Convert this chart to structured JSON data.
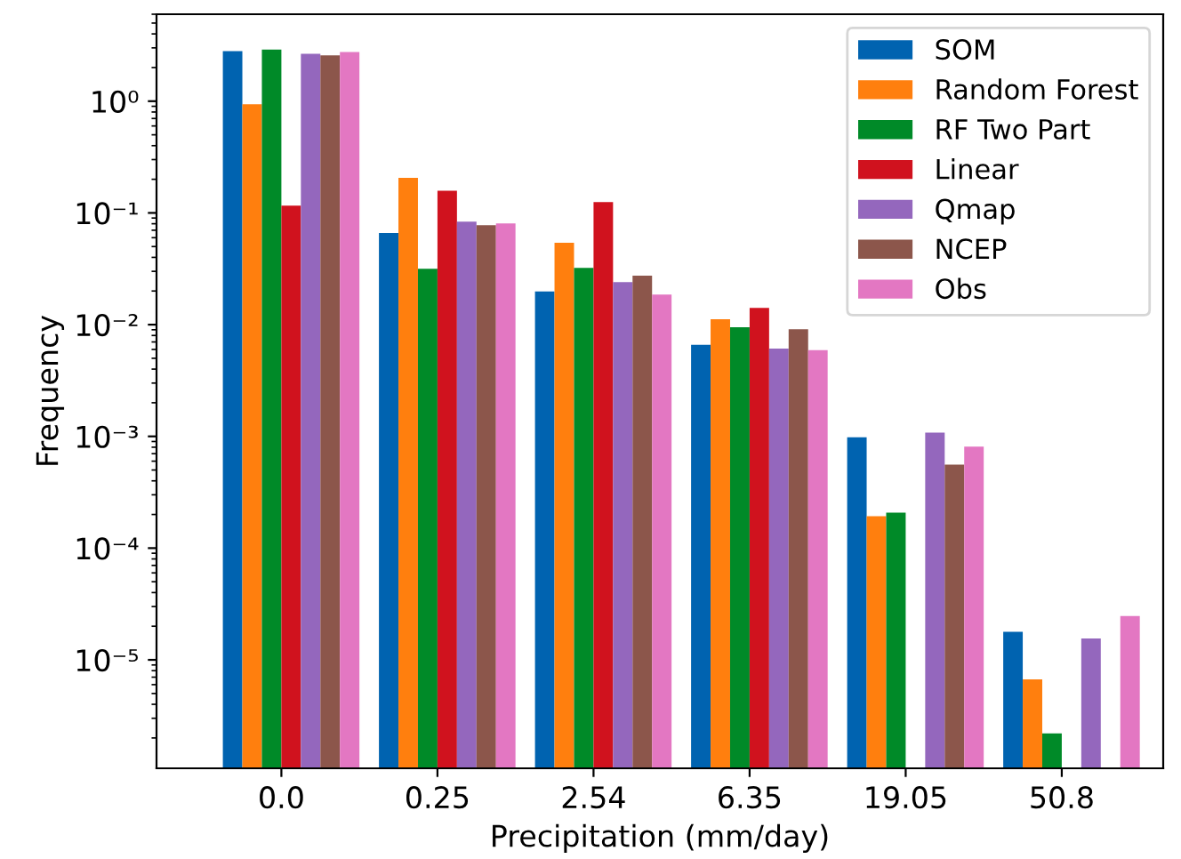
{
  "chart_data": {
    "type": "bar",
    "xlabel": "Precipitation (mm/day)",
    "ylabel": "Frequency",
    "categories": [
      "0.0",
      "0.25",
      "2.54",
      "6.35",
      "19.05",
      "50.8"
    ],
    "log": true,
    "ylim": [
      1.07e-06,
      6
    ],
    "yticks": [
      {
        "value": 1e-05,
        "label": "10⁻⁵"
      },
      {
        "value": 0.0001,
        "label": "10⁻⁴"
      },
      {
        "value": 0.001,
        "label": "10⁻³"
      },
      {
        "value": 0.01,
        "label": "10⁻²"
      },
      {
        "value": 0.1,
        "label": "10⁻¹"
      },
      {
        "value": 1,
        "label": "10⁰"
      }
    ],
    "legend": "top right",
    "grid": false,
    "series": [
      {
        "name": "SOM",
        "color": "#0063b0",
        "values": [
          2.8,
          0.066,
          0.0198,
          0.0066,
          0.00098,
          1.78e-05
        ]
      },
      {
        "name": "Random Forest",
        "color": "#ff7f0e",
        "values": [
          0.94,
          0.206,
          0.054,
          0.0112,
          0.000193,
          6.7e-06
        ]
      },
      {
        "name": "RF Two Part",
        "color": "#008a28",
        "values": [
          2.9,
          0.0316,
          0.0322,
          0.0095,
          0.000208,
          2.2e-06
        ]
      },
      {
        "name": "Linear",
        "color": "#d0121e",
        "values": [
          0.116,
          0.158,
          0.125,
          0.0141,
          null,
          null
        ]
      },
      {
        "name": "Qmap",
        "color": "#9467bd",
        "values": [
          2.66,
          0.0836,
          0.024,
          0.0061,
          0.00108,
          1.55e-05
        ]
      },
      {
        "name": "NCEP",
        "color": "#8c564b",
        "values": [
          2.57,
          0.0776,
          0.0275,
          0.0091,
          0.00056,
          null
        ]
      },
      {
        "name": "Obs",
        "color": "#e377c2",
        "values": [
          2.76,
          0.0805,
          0.0186,
          0.0059,
          0.00081,
          2.47e-05
        ]
      }
    ]
  }
}
